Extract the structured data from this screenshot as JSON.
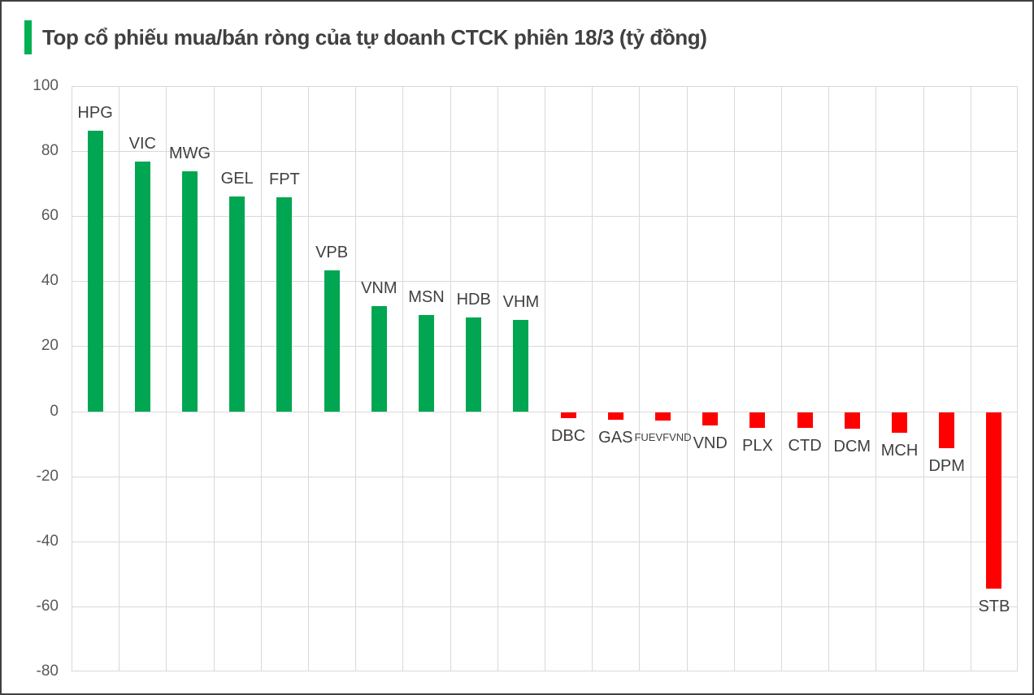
{
  "header": {
    "title": "Top cổ phiếu mua/bán ròng của tự doanh CTCK phiên 18/3 (tỷ đồng)"
  },
  "chart_data": {
    "type": "bar",
    "title": "Top cổ phiếu mua/bán ròng của tự doanh CTCK phiên 18/3 (tỷ đồng)",
    "categories": [
      "HPG",
      "VIC",
      "MWG",
      "GEL",
      "FPT",
      "VPB",
      "VNM",
      "MSN",
      "HDB",
      "VHM",
      "DBC",
      "GAS",
      "FUEVFVND",
      "VND",
      "PLX",
      "CTD",
      "DCM",
      "MCH",
      "DPM",
      "STB"
    ],
    "values": [
      86.3,
      76.8,
      73.8,
      66.0,
      65.8,
      43.4,
      32.3,
      29.5,
      28.8,
      28.2,
      -1.8,
      -2.3,
      -2.5,
      -4.0,
      -4.8,
      -4.9,
      -5.2,
      -6.4,
      -11.0,
      -54.3
    ],
    "unit": "tỷ đồng",
    "xlabel": "",
    "ylabel": "",
    "ylim": [
      -80,
      100
    ],
    "yticks": [
      100,
      80,
      60,
      40,
      20,
      0,
      -20,
      -40,
      -60,
      -80
    ],
    "grid": true,
    "legend_position": "none",
    "label_position": "outside-end",
    "small_font_category": "FUEVFVND",
    "colors": {
      "positive": "#00A651",
      "negative": "#FF0000",
      "gridline": "#D9D9D9",
      "title_text": "#404040",
      "axis_text": "#595959",
      "title_accent": "#00B052",
      "frame_border": "#404040",
      "background": "#FFFFFF"
    }
  }
}
